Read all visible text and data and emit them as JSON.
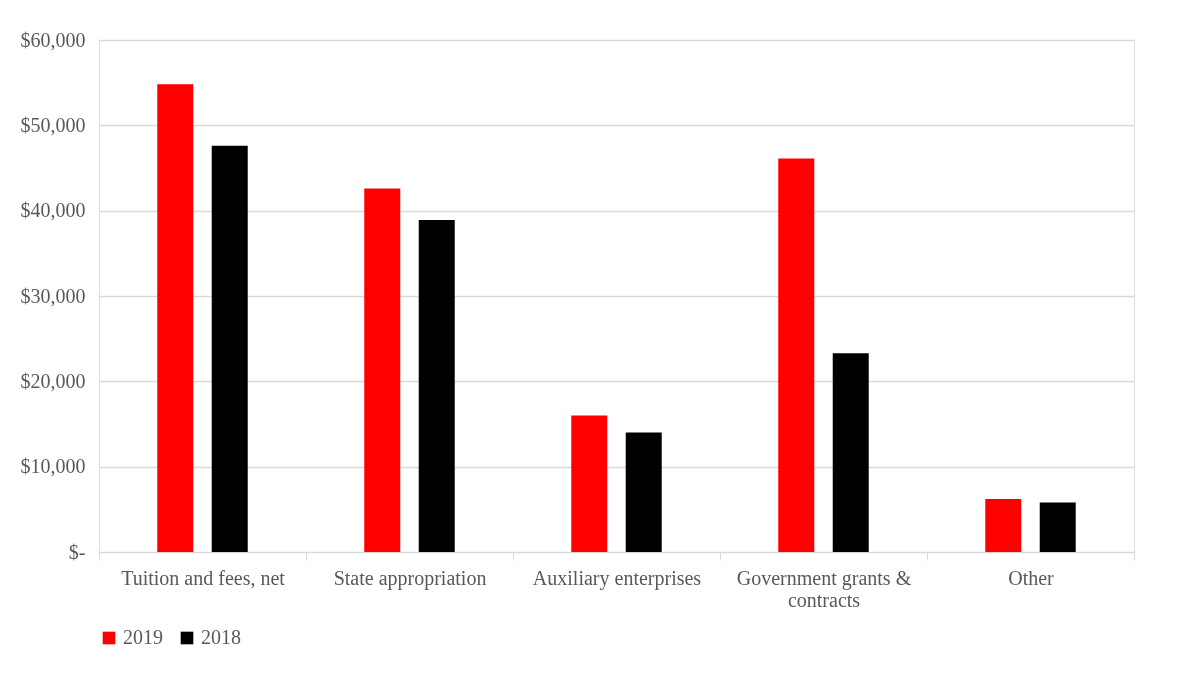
{
  "chart_data": {
    "type": "bar",
    "categories": [
      "Tuition and fees, net",
      "State appropriation",
      "Auxiliary enterprises",
      "Government grants & contracts",
      "Other"
    ],
    "series": [
      {
        "name": "2019",
        "color": "#ff0000",
        "values": [
          54800,
          42600,
          16000,
          46100,
          6200
        ]
      },
      {
        "name": "2018",
        "color": "#000000",
        "values": [
          47600,
          38900,
          14000,
          23300,
          5800
        ]
      }
    ],
    "ylim": [
      0,
      60000
    ],
    "yticks": [
      {
        "value": 0,
        "label": "$-"
      },
      {
        "value": 10000,
        "label": "$10,000"
      },
      {
        "value": 20000,
        "label": "$20,000"
      },
      {
        "value": 30000,
        "label": "$30,000"
      },
      {
        "value": 40000,
        "label": "$40,000"
      },
      {
        "value": 50000,
        "label": "$50,000"
      },
      {
        "value": 60000,
        "label": "$60,000"
      }
    ],
    "grid": "y",
    "legend": "bottom"
  }
}
